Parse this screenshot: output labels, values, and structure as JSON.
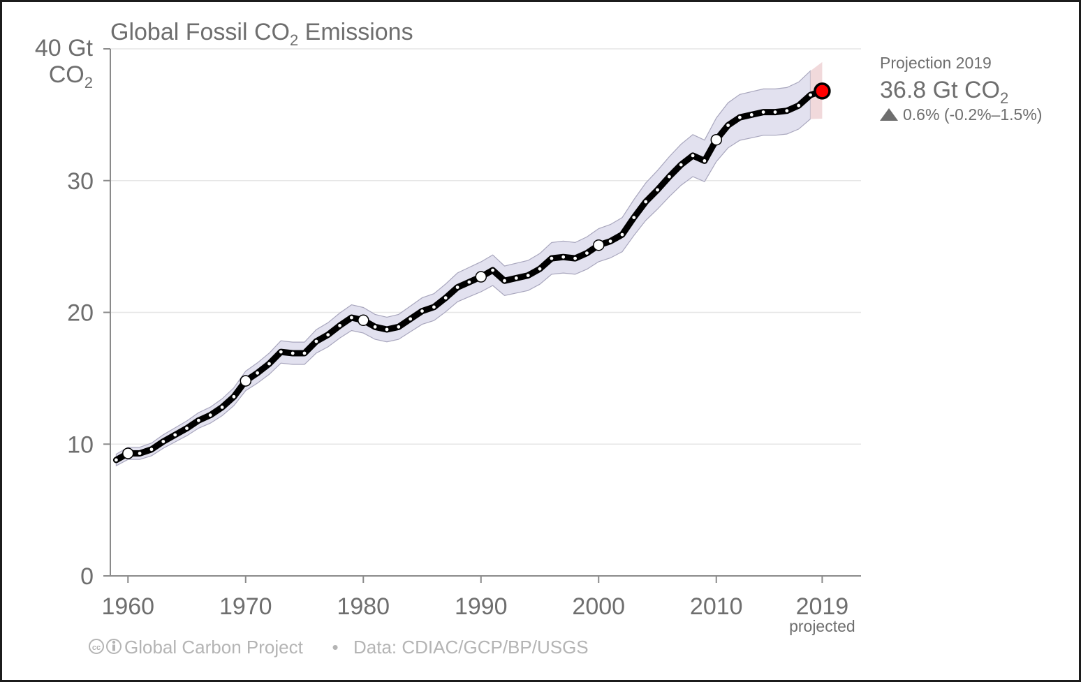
{
  "chart_data": {
    "type": "line",
    "title": "Global Fossil CO",
    "title_sub": "2",
    "title_suffix": " Emissions",
    "ylabel_line1": "40 Gt",
    "ylabel_line2": "CO",
    "ylabel_sub": "2",
    "ylim": [
      0,
      40
    ],
    "xlim": [
      1958.5,
      2022.3
    ],
    "yticks": [
      0,
      10,
      20,
      30
    ],
    "xticks": [
      1960,
      1970,
      1980,
      1990,
      2000,
      2010,
      2019
    ],
    "xtick_note": "projected",
    "grid": true,
    "series": [
      {
        "x": [
          1959,
          1960,
          1961,
          1962,
          1963,
          1964,
          1965,
          1966,
          1967,
          1968,
          1969,
          1970,
          1971,
          1972,
          1973,
          1974,
          1975,
          1976,
          1977,
          1978,
          1979,
          1980,
          1981,
          1982,
          1983,
          1984,
          1985,
          1986,
          1987,
          1988,
          1989,
          1990,
          1991,
          1992,
          1993,
          1994,
          1995,
          1996,
          1997,
          1998,
          1999,
          2000,
          2001,
          2002,
          2003,
          2004,
          2005,
          2006,
          2007,
          2008,
          2009,
          2010,
          2011,
          2012,
          2013,
          2014,
          2015,
          2016,
          2017,
          2018
        ],
        "values": [
          8.8,
          9.3,
          9.3,
          9.6,
          10.2,
          10.7,
          11.2,
          11.8,
          12.2,
          12.8,
          13.6,
          14.8,
          15.4,
          16.1,
          17.0,
          16.9,
          16.9,
          17.8,
          18.3,
          19.0,
          19.6,
          19.4,
          18.9,
          18.7,
          18.9,
          19.5,
          20.1,
          20.4,
          21.1,
          21.9,
          22.3,
          22.7,
          23.2,
          22.4,
          22.6,
          22.8,
          23.3,
          24.1,
          24.2,
          24.1,
          24.5,
          25.1,
          25.4,
          25.9,
          27.2,
          28.4,
          29.3,
          30.3,
          31.2,
          31.9,
          31.5,
          33.1,
          34.2,
          34.8,
          35.0,
          35.2,
          35.2,
          35.3,
          35.7,
          36.5
        ],
        "uncertainty_pct": 5
      }
    ],
    "highlight_years": [
      1960,
      1970,
      1980,
      1990,
      2000,
      2010
    ],
    "projection": {
      "x": 2019,
      "value": 36.8,
      "low": 34.7,
      "high": 39.0,
      "label": "Projection 2019",
      "value_text": "36.8 Gt CO",
      "value_sub": "2",
      "change_text": "0.6% (-0.2%–1.5%)"
    },
    "colors": {
      "line": "#000000",
      "band": "#e2e1ef",
      "band_edge": "#a8a6bd",
      "proj_band": "#f1d9db",
      "proj_point": "#ff0000",
      "axis": "#8a8a8a",
      "grid": "#e6e6e6",
      "text": "#6e6e6e",
      "footer": "#b4b4b4"
    },
    "footer": {
      "icons": "cc-by-icons",
      "org": "Global Carbon Project",
      "separator": "•",
      "source": "Data: CDIAC/GCP/BP/USGS"
    }
  }
}
